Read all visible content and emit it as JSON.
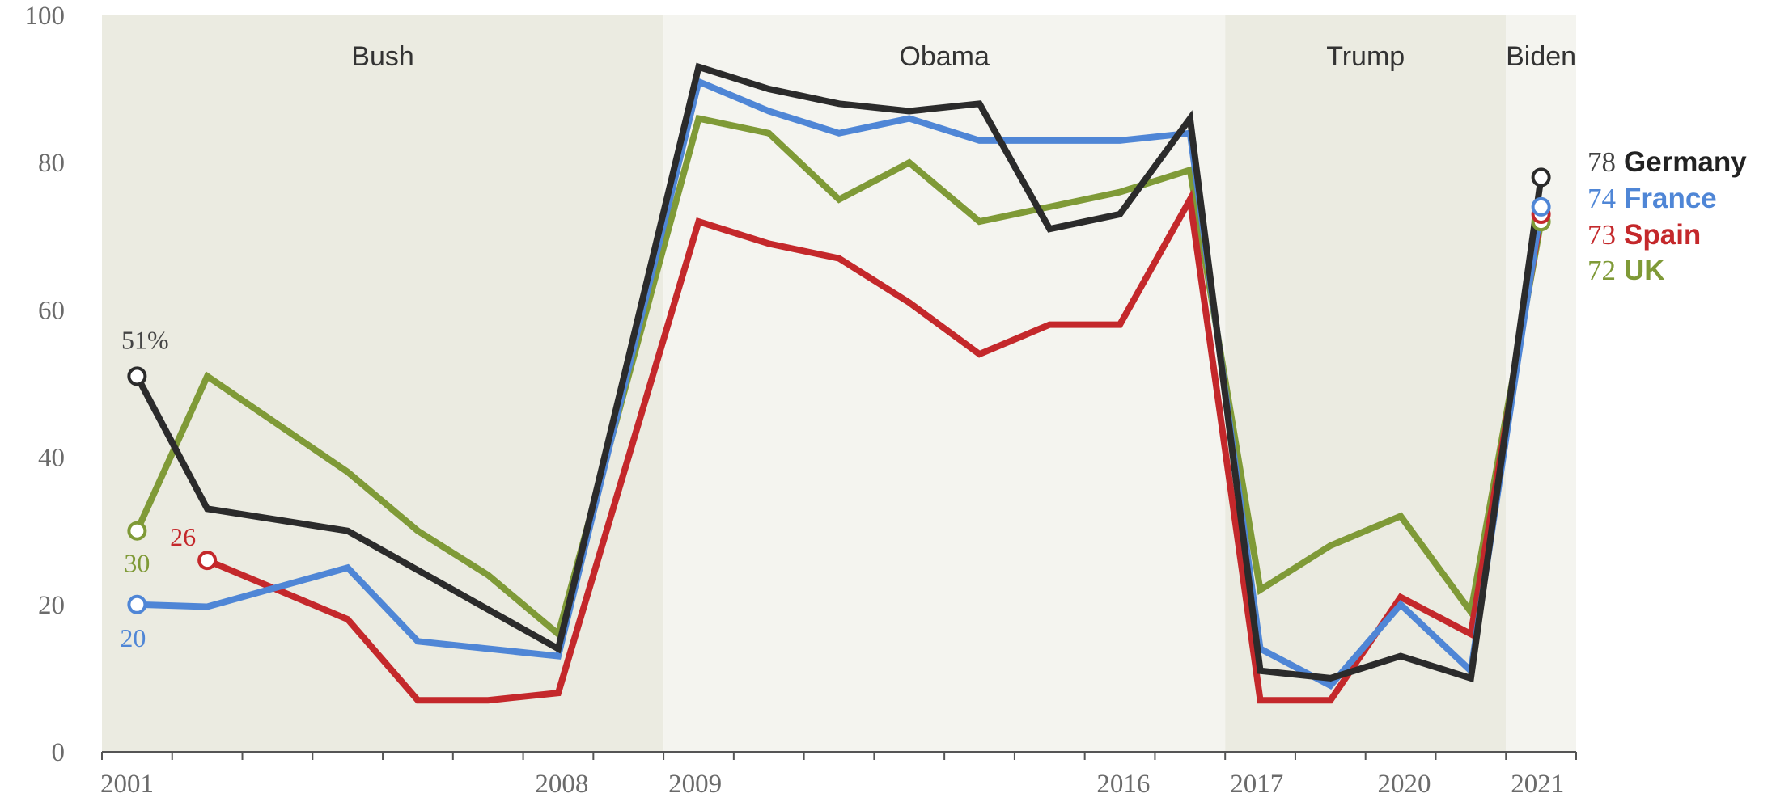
{
  "chart_data": {
    "type": "line",
    "title": "",
    "xlabel": "",
    "ylabel": "",
    "ylim": [
      0,
      100
    ],
    "yticks": [
      "0",
      "20",
      "40",
      "60",
      "80",
      "100"
    ],
    "x_tick_labels": [
      "2001",
      "2008",
      "2009",
      "2016",
      "2017",
      "2020",
      "2021"
    ],
    "eras": [
      {
        "name": "Bush",
        "from": 2001,
        "to": 2008,
        "shade": "#ebebe1"
      },
      {
        "name": "Obama",
        "from": 2009,
        "to": 2016,
        "shade": "#f4f4ef"
      },
      {
        "name": "Trump",
        "from": 2017,
        "to": 2020,
        "shade": "#ebebe1"
      },
      {
        "name": "Biden",
        "from": 2021,
        "to": 2021,
        "shade": "#f4f4ef"
      }
    ],
    "grid": false,
    "legend_position": "right",
    "series": [
      {
        "name": "UK",
        "color": "#7f9a37",
        "end_value": "72",
        "points": [
          [
            2001,
            30
          ],
          [
            2002,
            51
          ],
          [
            2004,
            38
          ],
          [
            2005,
            30
          ],
          [
            2006,
            24
          ],
          [
            2007,
            16
          ],
          [
            2009,
            86
          ],
          [
            2010,
            84
          ],
          [
            2011,
            75
          ],
          [
            2012,
            80
          ],
          [
            2013,
            72
          ],
          [
            2014,
            74
          ],
          [
            2015,
            76
          ],
          [
            2016,
            79
          ],
          [
            2017,
            22
          ],
          [
            2018,
            28
          ],
          [
            2019,
            32
          ],
          [
            2020,
            19
          ],
          [
            2021,
            72
          ]
        ],
        "start_label": "30"
      },
      {
        "name": "Spain",
        "color": "#c4282b",
        "end_value": "73",
        "points": [
          [
            2002,
            26
          ],
          [
            2003,
            22
          ],
          [
            2004,
            18
          ],
          [
            2005,
            7
          ],
          [
            2006,
            7
          ],
          [
            2007,
            8
          ],
          [
            2009,
            72
          ],
          [
            2010,
            69
          ],
          [
            2011,
            67
          ],
          [
            2012,
            61
          ],
          [
            2013,
            54
          ],
          [
            2014,
            58
          ],
          [
            2015,
            58
          ],
          [
            2016,
            75
          ],
          [
            2017,
            7
          ],
          [
            2018,
            7
          ],
          [
            2019,
            21
          ],
          [
            2020,
            16
          ],
          [
            2021,
            73
          ]
        ],
        "start_label": "26"
      },
      {
        "name": "France",
        "color": "#4f86d6",
        "end_value": "74",
        "points": [
          [
            2001,
            20
          ],
          [
            2002,
            19.7
          ],
          [
            2004,
            25
          ],
          [
            2005,
            15
          ],
          [
            2007,
            13
          ],
          [
            2009,
            91
          ],
          [
            2010,
            87
          ],
          [
            2011,
            84
          ],
          [
            2012,
            86
          ],
          [
            2013,
            83
          ],
          [
            2014,
            83
          ],
          [
            2015,
            83
          ],
          [
            2016,
            84
          ],
          [
            2017,
            14
          ],
          [
            2018,
            9
          ],
          [
            2019,
            20
          ],
          [
            2020,
            11
          ],
          [
            2021,
            74
          ]
        ],
        "start_label": "20"
      },
      {
        "name": "Germany",
        "color": "#2b2b2b",
        "end_value": "78",
        "points": [
          [
            2001,
            51
          ],
          [
            2002,
            33
          ],
          [
            2004,
            30
          ],
          [
            2007,
            14
          ],
          [
            2009,
            93
          ],
          [
            2010,
            90
          ],
          [
            2011,
            88
          ],
          [
            2012,
            87
          ],
          [
            2013,
            88
          ],
          [
            2014,
            71
          ],
          [
            2015,
            73
          ],
          [
            2016,
            86
          ],
          [
            2017,
            11
          ],
          [
            2018,
            10
          ],
          [
            2019,
            13
          ],
          [
            2020,
            10
          ],
          [
            2021,
            78
          ]
        ],
        "start_label": "51%"
      }
    ]
  }
}
